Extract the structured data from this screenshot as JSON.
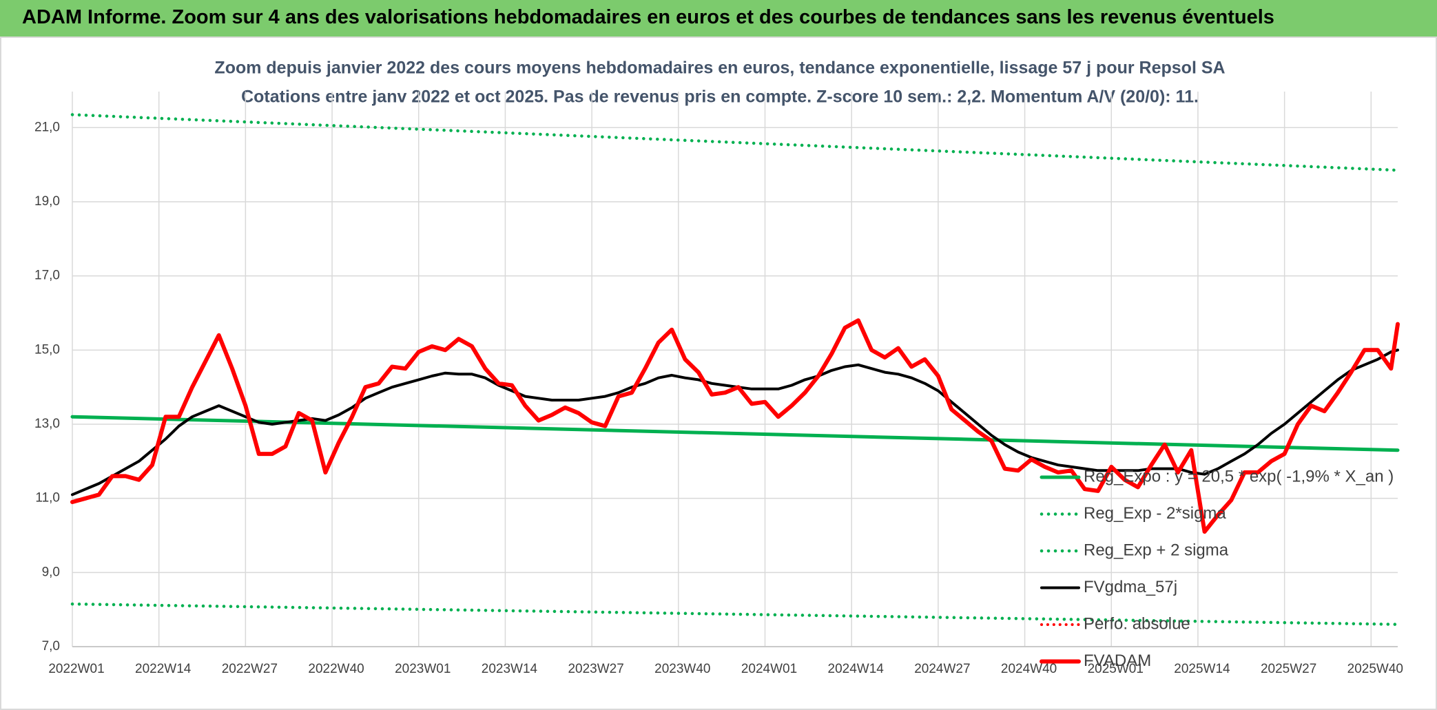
{
  "header": {
    "title": "ADAM Informe. Zoom sur 4 ans des valorisations hebdomadaires en euros et des courbes de tendances sans les revenus éventuels"
  },
  "chart_data": {
    "type": "line",
    "title": "Zoom depuis janvier 2022 des cours moyens hebdomadaires en euros, tendance exponentielle, lissage 57 j pour Repsol SA",
    "subtitle": "Cotations entre janv 2022 et oct 2025. Pas de revenus pris en compte. Z-score 10 sem.: 2,2. Momentum A/V (20/0): 11.",
    "xlim": [
      0,
      199
    ],
    "xticks": [
      {
        "value": 0,
        "label": "2022W01"
      },
      {
        "value": 13,
        "label": "2022W14"
      },
      {
        "value": 26,
        "label": "2022W27"
      },
      {
        "value": 39,
        "label": "2022W40"
      },
      {
        "value": 52,
        "label": "2023W01"
      },
      {
        "value": 65,
        "label": "2023W14"
      },
      {
        "value": 78,
        "label": "2023W27"
      },
      {
        "value": 91,
        "label": "2023W40"
      },
      {
        "value": 104,
        "label": "2024W01"
      },
      {
        "value": 117,
        "label": "2024W14"
      },
      {
        "value": 130,
        "label": "2024W27"
      },
      {
        "value": 143,
        "label": "2024W40"
      },
      {
        "value": 156,
        "label": "2025W01"
      },
      {
        "value": 169,
        "label": "2025W14"
      },
      {
        "value": 182,
        "label": "2025W27"
      },
      {
        "value": 195,
        "label": "2025W40"
      }
    ],
    "ylim": [
      7,
      21.6
    ],
    "yticks": [
      {
        "value": 7,
        "label": "7,0"
      },
      {
        "value": 9,
        "label": "9,0"
      },
      {
        "value": 11,
        "label": "11,0"
      },
      {
        "value": 13,
        "label": "13,0"
      },
      {
        "value": 15,
        "label": "15,0"
      },
      {
        "value": 17,
        "label": "17,0"
      },
      {
        "value": 19,
        "label": "19,0"
      },
      {
        "value": 21,
        "label": "21,0"
      }
    ],
    "grid": true,
    "x": [
      0,
      2,
      4,
      6,
      8,
      10,
      12,
      14,
      16,
      18,
      20,
      22,
      24,
      26,
      28,
      30,
      32,
      34,
      36,
      38,
      40,
      42,
      44,
      46,
      48,
      50,
      52,
      54,
      56,
      58,
      60,
      62,
      64,
      66,
      68,
      70,
      72,
      74,
      76,
      78,
      80,
      82,
      84,
      86,
      88,
      90,
      92,
      94,
      96,
      98,
      100,
      102,
      104,
      106,
      108,
      110,
      112,
      114,
      116,
      118,
      120,
      122,
      124,
      126,
      128,
      130,
      132,
      134,
      136,
      138,
      140,
      142,
      144,
      146,
      148,
      150,
      152,
      154,
      156,
      158,
      160,
      162,
      164,
      166,
      168,
      170,
      172,
      174,
      176,
      178,
      180,
      182,
      184,
      186,
      188,
      190,
      192,
      194,
      196,
      198,
      199
    ],
    "series": [
      {
        "name": "Reg_Expo : y = 20,5 * exp( -1,9% *  X_an )",
        "color": "#00b050",
        "dotted": false,
        "width": 5,
        "x": [
          0,
          199
        ],
        "values": [
          13.2,
          12.3
        ]
      },
      {
        "name": "Reg_Exp - 2*sigma",
        "color": "#00b050",
        "dotted": true,
        "width": 4.5,
        "x": [
          0,
          199
        ],
        "values": [
          8.15,
          7.6
        ]
      },
      {
        "name": "Reg_Exp + 2 sigma",
        "color": "#00b050",
        "dotted": true,
        "width": 4.5,
        "x": [
          0,
          199
        ],
        "values": [
          21.35,
          19.85
        ]
      },
      {
        "name": "FVgdma_57j",
        "color": "#000000",
        "dotted": false,
        "width": 4,
        "values": [
          11.1,
          11.25,
          11.4,
          11.6,
          11.8,
          12.0,
          12.3,
          12.6,
          12.95,
          13.2,
          13.35,
          13.5,
          13.35,
          13.2,
          13.05,
          13.0,
          13.05,
          13.1,
          13.15,
          13.1,
          13.25,
          13.45,
          13.7,
          13.85,
          14.0,
          14.1,
          14.2,
          14.3,
          14.38,
          14.35,
          14.35,
          14.25,
          14.05,
          13.9,
          13.75,
          13.7,
          13.65,
          13.65,
          13.65,
          13.7,
          13.75,
          13.85,
          14.0,
          14.1,
          14.25,
          14.32,
          14.25,
          14.2,
          14.1,
          14.05,
          14.0,
          13.95,
          13.95,
          13.95,
          14.05,
          14.2,
          14.3,
          14.45,
          14.55,
          14.6,
          14.5,
          14.4,
          14.35,
          14.25,
          14.1,
          13.9,
          13.6,
          13.3,
          13.0,
          12.7,
          12.45,
          12.25,
          12.1,
          12.0,
          11.9,
          11.85,
          11.8,
          11.75,
          11.75,
          11.75,
          11.75,
          11.8,
          11.8,
          11.8,
          11.7,
          11.65,
          11.8,
          12.0,
          12.2,
          12.45,
          12.75,
          13.0,
          13.3,
          13.6,
          13.9,
          14.2,
          14.45,
          14.6,
          14.75,
          14.95,
          15.0
        ]
      },
      {
        "name": "Perfo. absolue",
        "color": "#ff0000",
        "dotted": true,
        "width": 4,
        "x": [],
        "values": []
      },
      {
        "name": "FVADAM",
        "color": "#ff0000",
        "dotted": false,
        "width": 6,
        "values": [
          10.9,
          11.0,
          11.1,
          11.6,
          11.6,
          11.5,
          11.9,
          13.2,
          13.2,
          14.0,
          14.7,
          15.4,
          14.5,
          13.5,
          12.2,
          12.2,
          12.4,
          13.3,
          13.1,
          11.7,
          12.5,
          13.2,
          14.0,
          14.1,
          14.55,
          14.5,
          14.95,
          15.1,
          15.0,
          15.3,
          15.1,
          14.5,
          14.1,
          14.05,
          13.5,
          13.1,
          13.25,
          13.45,
          13.3,
          13.05,
          12.95,
          13.75,
          13.85,
          14.5,
          15.2,
          15.55,
          14.75,
          14.4,
          13.8,
          13.85,
          14.0,
          13.55,
          13.6,
          13.2,
          13.5,
          13.85,
          14.3,
          14.9,
          15.6,
          15.8,
          15.0,
          14.8,
          15.05,
          14.55,
          14.75,
          14.3,
          13.4,
          13.1,
          12.8,
          12.55,
          11.8,
          11.75,
          12.05,
          11.85,
          11.7,
          11.75,
          11.25,
          11.2,
          11.85,
          11.5,
          11.3,
          11.9,
          12.45,
          11.7,
          12.3,
          10.1,
          10.55,
          10.95,
          11.7,
          11.7,
          12.0,
          12.2,
          13.0,
          13.5,
          13.35,
          13.85,
          14.4,
          15.0,
          15.0,
          14.5,
          15.7
        ]
      }
    ]
  }
}
